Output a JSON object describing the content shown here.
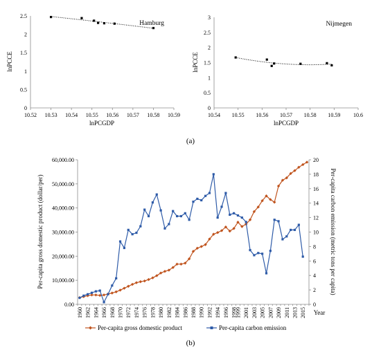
{
  "figure": {
    "caption_a": "(a)",
    "caption_b": "(b)"
  },
  "chart_data": [
    {
      "type": "scatter",
      "title": "Hamburg",
      "xlabel": "lnPCGDP",
      "ylabel": "lnPCCE",
      "xlim": [
        10.52,
        10.59
      ],
      "ylim": [
        0,
        2.5
      ],
      "xticks": [
        "10.52",
        "10.53",
        "10.54",
        "10.55",
        "10.56",
        "10.57",
        "10.58",
        "10.59"
      ],
      "yticks": [
        "0",
        "0.5",
        "1",
        "1.5",
        "2",
        "2.5"
      ],
      "grid": false,
      "trendline": "dotted",
      "x": [
        10.53,
        10.545,
        10.551,
        10.553,
        10.556,
        10.561,
        10.58
      ],
      "y": [
        2.47,
        2.44,
        2.37,
        2.31,
        2.3,
        2.29,
        2.17
      ]
    },
    {
      "type": "scatter",
      "title": "Nijmegen",
      "xlabel": "lnPCGDP",
      "ylabel": "lnPCCE",
      "xlim": [
        10.54,
        10.6
      ],
      "ylim": [
        0,
        3
      ],
      "xticks": [
        "10.54",
        "10.55",
        "10.56",
        "10.57",
        "10.58",
        "10.59",
        "10.6"
      ],
      "yticks": [
        "0",
        "0.5",
        "1",
        "1.5",
        "2",
        "2.5",
        "3"
      ],
      "grid": false,
      "trendline": "dotted",
      "x": [
        10.549,
        10.562,
        10.564,
        10.565,
        10.576,
        10.587,
        10.589
      ],
      "y": [
        1.67,
        1.6,
        1.39,
        1.47,
        1.46,
        1.48,
        1.41
      ]
    },
    {
      "type": "line",
      "xlabel": "Year",
      "ylabel": "Per-capita gross domestic product (dollar/per)",
      "ylabel_right": "Per-capita carbon emission (metric tons per capita)",
      "ylim": [
        0,
        60000
      ],
      "ylim_right": [
        0,
        20
      ],
      "yticks": [
        "0.00",
        "10,000.00",
        "20,000.00",
        "30,000.00",
        "40,000.00",
        "50,000.00",
        "60,000.00"
      ],
      "yticks_right": [
        "0",
        "2",
        "4",
        "6",
        "8",
        "10",
        "12",
        "14",
        "16",
        "18",
        "20"
      ],
      "xticks": [
        "1960",
        "1962",
        "1964",
        "1966",
        "1968",
        "1970",
        "1972",
        "1974",
        "1976",
        "1978",
        "1980",
        "1982",
        "1984",
        "1986",
        "1988",
        "1990",
        "1992",
        "1994",
        "1996",
        "1998",
        "1999",
        "2001",
        "2003",
        "2005",
        "2007",
        "2009",
        "2011",
        "2013",
        "2015"
      ],
      "legend_position": "bottom",
      "years": [
        1960,
        1961,
        1962,
        1963,
        1964,
        1965,
        1966,
        1967,
        1968,
        1969,
        1970,
        1971,
        1972,
        1973,
        1974,
        1975,
        1976,
        1977,
        1978,
        1979,
        1980,
        1981,
        1982,
        1983,
        1984,
        1985,
        1986,
        1987,
        1988,
        1989,
        1990,
        1991,
        1992,
        1993,
        1994,
        1995,
        1996,
        1997,
        1998,
        1999,
        2000,
        2001,
        2002,
        2003,
        2004,
        2005,
        2006,
        2007,
        2008,
        2009,
        2010,
        2011,
        2012,
        2013,
        2014,
        2015,
        2016
      ],
      "series": [
        {
          "name": "Per-capita gross domestic product",
          "axis": "left",
          "color": "#c0541e",
          "marker": "diamond",
          "values": [
            2800,
            3200,
            3600,
            3900,
            3900,
            3700,
            3900,
            4300,
            4700,
            5200,
            5900,
            6700,
            7500,
            8300,
            9000,
            9400,
            9700,
            10300,
            11000,
            11900,
            13000,
            13700,
            14200,
            15300,
            16700,
            16700,
            17100,
            18900,
            22000,
            23300,
            24000,
            24800,
            27100,
            29100,
            29800,
            30600,
            32100,
            30400,
            31500,
            34100,
            32300,
            33300,
            35100,
            38500,
            40400,
            43000,
            45000,
            43500,
            42400,
            49100,
            51500,
            52500,
            54300,
            55500,
            56900,
            58000,
            59000
          ]
        },
        {
          "name": "Per-capita carbon emission",
          "axis": "right",
          "color": "#2e5ba8",
          "marker": "square",
          "values": [
            0.9,
            1.2,
            1.4,
            1.6,
            1.8,
            1.9,
            0.3,
            1.4,
            2.6,
            3.6,
            8.7,
            7.8,
            10.3,
            9.7,
            9.9,
            10.8,
            13.1,
            12.2,
            14.1,
            15.2,
            13.0,
            10.5,
            11.1,
            12.9,
            12.2,
            12.2,
            12.6,
            11.7,
            14.2,
            14.6,
            14.4,
            15.0,
            15.4,
            18.0,
            12.0,
            13.5,
            15.4,
            12.4,
            12.6,
            12.3,
            12.0,
            11.4,
            7.5,
            6.8,
            7.1,
            7.0,
            4.3,
            7.4,
            11.7,
            11.5,
            9.0,
            9.4,
            10.3,
            10.3,
            11.0,
            6.6,
            null
          ]
        }
      ]
    }
  ]
}
